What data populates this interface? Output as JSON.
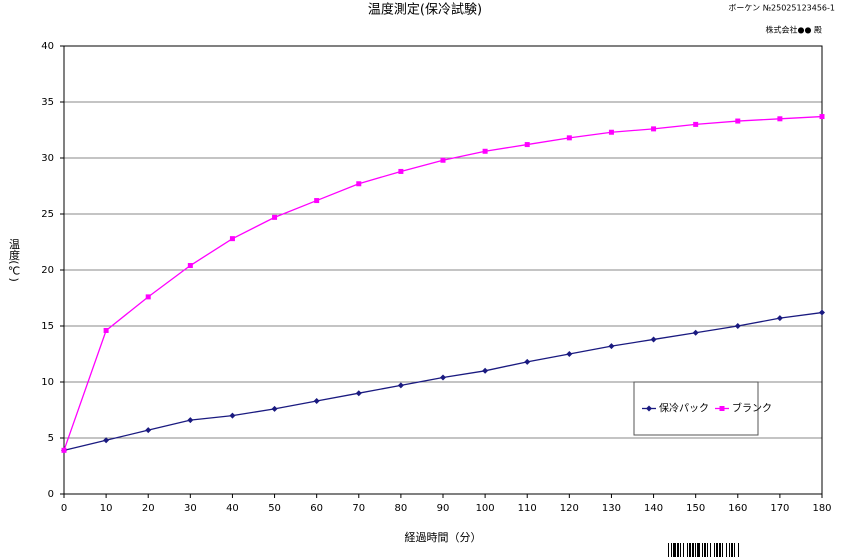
{
  "chart_data": {
    "type": "line",
    "title": "温度測定(保冷試験)",
    "annotations": [
      "ボーケン №25025123456-1",
      "株式会社●● 殿"
    ],
    "x_label": "経過時間（分）",
    "y_label": "温度(℃)",
    "x": [
      0,
      10,
      20,
      30,
      40,
      50,
      60,
      70,
      80,
      90,
      100,
      110,
      120,
      130,
      140,
      150,
      160,
      170,
      180
    ],
    "series": [
      {
        "name": "保冷パック",
        "color": "#1a1a80",
        "marker": "diamond",
        "values": [
          3.9,
          4.8,
          5.7,
          6.6,
          7.0,
          7.6,
          8.3,
          9.0,
          9.7,
          10.4,
          11.0,
          11.8,
          12.5,
          13.2,
          13.8,
          14.4,
          15.0,
          15.7,
          16.2
        ]
      },
      {
        "name": "ブランク",
        "color": "#ff00ff",
        "marker": "square",
        "values": [
          3.9,
          14.6,
          17.6,
          20.4,
          22.8,
          24.7,
          26.2,
          27.7,
          28.8,
          29.8,
          30.6,
          31.2,
          31.8,
          32.3,
          32.6,
          33.0,
          33.3,
          33.5,
          33.7
        ]
      }
    ],
    "xlim": [
      0,
      180
    ],
    "xticks": [
      0,
      10,
      20,
      30,
      40,
      50,
      60,
      70,
      80,
      90,
      100,
      110,
      120,
      130,
      140,
      150,
      160,
      170,
      180
    ],
    "ylim": [
      0,
      40
    ],
    "yticks": [
      0,
      5,
      10,
      15,
      20,
      25,
      30,
      35,
      40
    ],
    "grid": true,
    "legend": "lower-right"
  }
}
